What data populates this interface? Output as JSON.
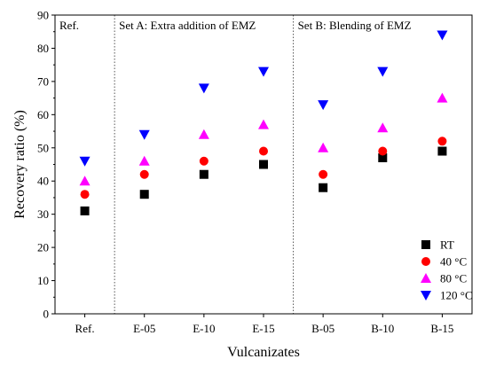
{
  "chart_data": {
    "type": "scatter",
    "title": "",
    "xlabel": "Vulcanizates",
    "ylabel": "Recovery ratio (%)",
    "categories": [
      "Ref.",
      "E-05",
      "E-10",
      "E-15",
      "B-05",
      "B-10",
      "B-15"
    ],
    "ylim": [
      0,
      90
    ],
    "yticks": [
      0,
      10,
      20,
      30,
      40,
      50,
      60,
      70,
      80,
      90
    ],
    "grid": false,
    "legend_position": "bottom-right",
    "regions": [
      {
        "label": "Ref.",
        "start": "Ref.",
        "end": "Ref."
      },
      {
        "label": "Set A: Extra addition of EMZ",
        "start": "E-05",
        "end": "E-15"
      },
      {
        "label": "Set B: Blending of EMZ",
        "start": "B-05",
        "end": "B-15"
      }
    ],
    "series": [
      {
        "name": "RT",
        "marker": "square",
        "color": "#000000",
        "values": [
          31,
          36,
          42,
          45,
          38,
          47,
          49
        ]
      },
      {
        "name": "40 °C",
        "marker": "circle",
        "color": "#ff0000",
        "values": [
          36,
          42,
          46,
          49,
          42,
          49,
          52
        ]
      },
      {
        "name": "80 °C",
        "marker": "triangle-up",
        "color": "#ff00ff",
        "values": [
          40,
          46,
          54,
          57,
          50,
          56,
          65
        ]
      },
      {
        "name": "120 °C",
        "marker": "triangle-down",
        "color": "#0000ff",
        "values": [
          46,
          54,
          68,
          73,
          63,
          73,
          84
        ]
      }
    ]
  }
}
